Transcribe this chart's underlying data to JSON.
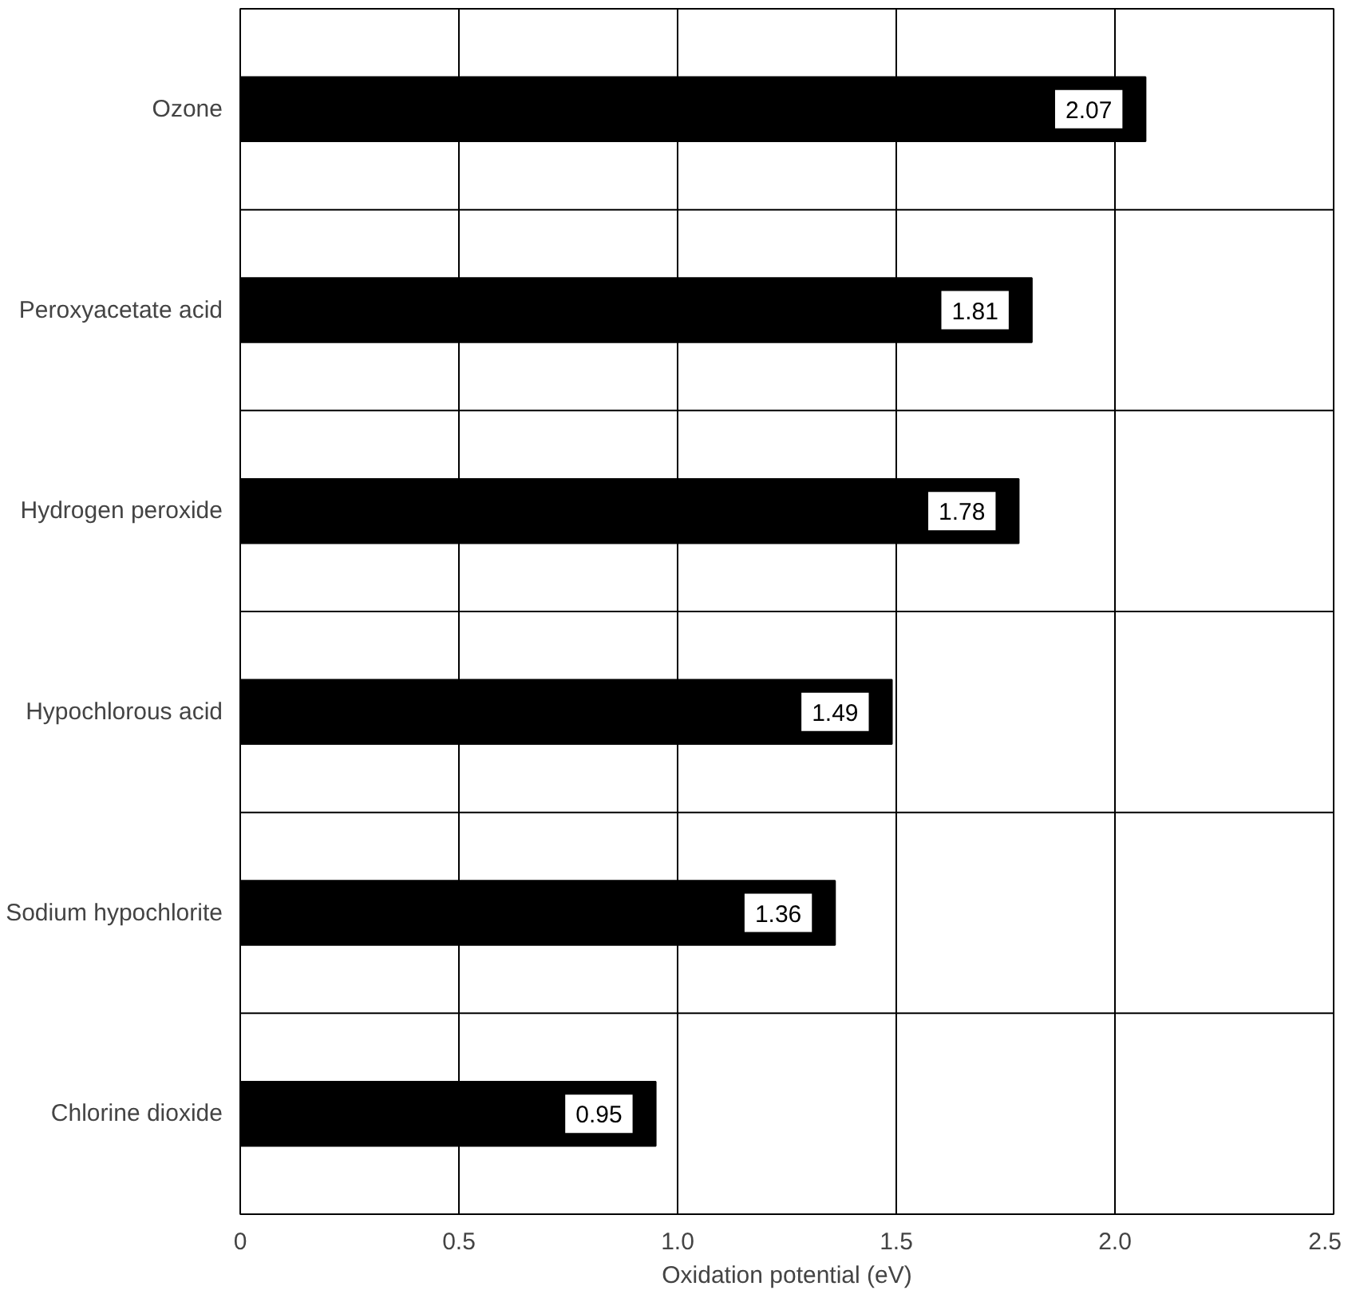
{
  "chart_data": {
    "type": "bar",
    "orientation": "horizontal",
    "xlabel": "Oxidation potential (eV)",
    "categories": [
      "Ozone",
      "Peroxyacetate acid",
      "Hydrogen peroxide",
      "Hypochlorous acid",
      "Sodium hypochlorite",
      "Chlorine dioxide"
    ],
    "values": [
      2.07,
      1.81,
      1.78,
      1.49,
      1.36,
      0.95
    ],
    "color": "#000000",
    "xlim": [
      0,
      2.5
    ],
    "xticks": [
      0,
      {
        "value": 0.5,
        "label": "0.5"
      },
      {
        "value": 1,
        "label": "1.0"
      },
      {
        "value": 1.5,
        "label": "1.5"
      },
      {
        "value": 2,
        "label": "2.0"
      },
      {
        "value": 2.5,
        "label": "2.5"
      }
    ],
    "grid": true,
    "data_labels": true
  }
}
